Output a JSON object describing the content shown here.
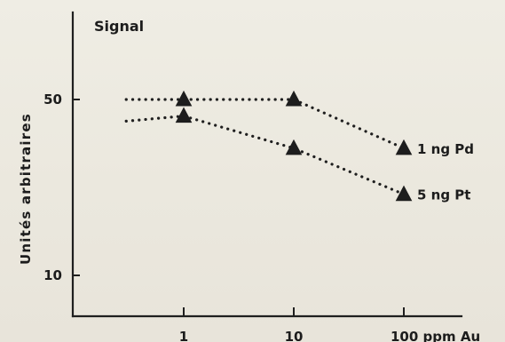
{
  "chart_data": {
    "type": "line",
    "title": "Signal",
    "ylabel": "Unités arbitraires",
    "xlabel": "ppm Au",
    "x_scale": "log",
    "y_scale": "log",
    "x_ticks": [
      1,
      10,
      100
    ],
    "y_ticks": [
      10,
      50
    ],
    "x_tick_labels": [
      "1",
      "10",
      "100 ppm Au"
    ],
    "y_tick_labels": [
      "10",
      "50"
    ],
    "xlim": [
      0.3,
      120
    ],
    "ylim": [
      7,
      130
    ],
    "series": [
      {
        "name": "1 ng Pd",
        "label": "1 ng Pd",
        "x_points": [
          1,
          10,
          100
        ],
        "y_points": [
          50,
          50,
          32
        ],
        "extension_start_x": 0.3,
        "extension_start_y": 50
      },
      {
        "name": "5 ng Pt",
        "label": "5 ng Pt",
        "x_points": [
          1,
          10,
          100
        ],
        "y_points": [
          43,
          32,
          21
        ],
        "extension_start_x": 0.3,
        "extension_start_y": 41
      }
    ],
    "grid": false,
    "legend": "none"
  },
  "colors": {
    "ink": "#1d1d1d",
    "paper": "#ece9df"
  }
}
